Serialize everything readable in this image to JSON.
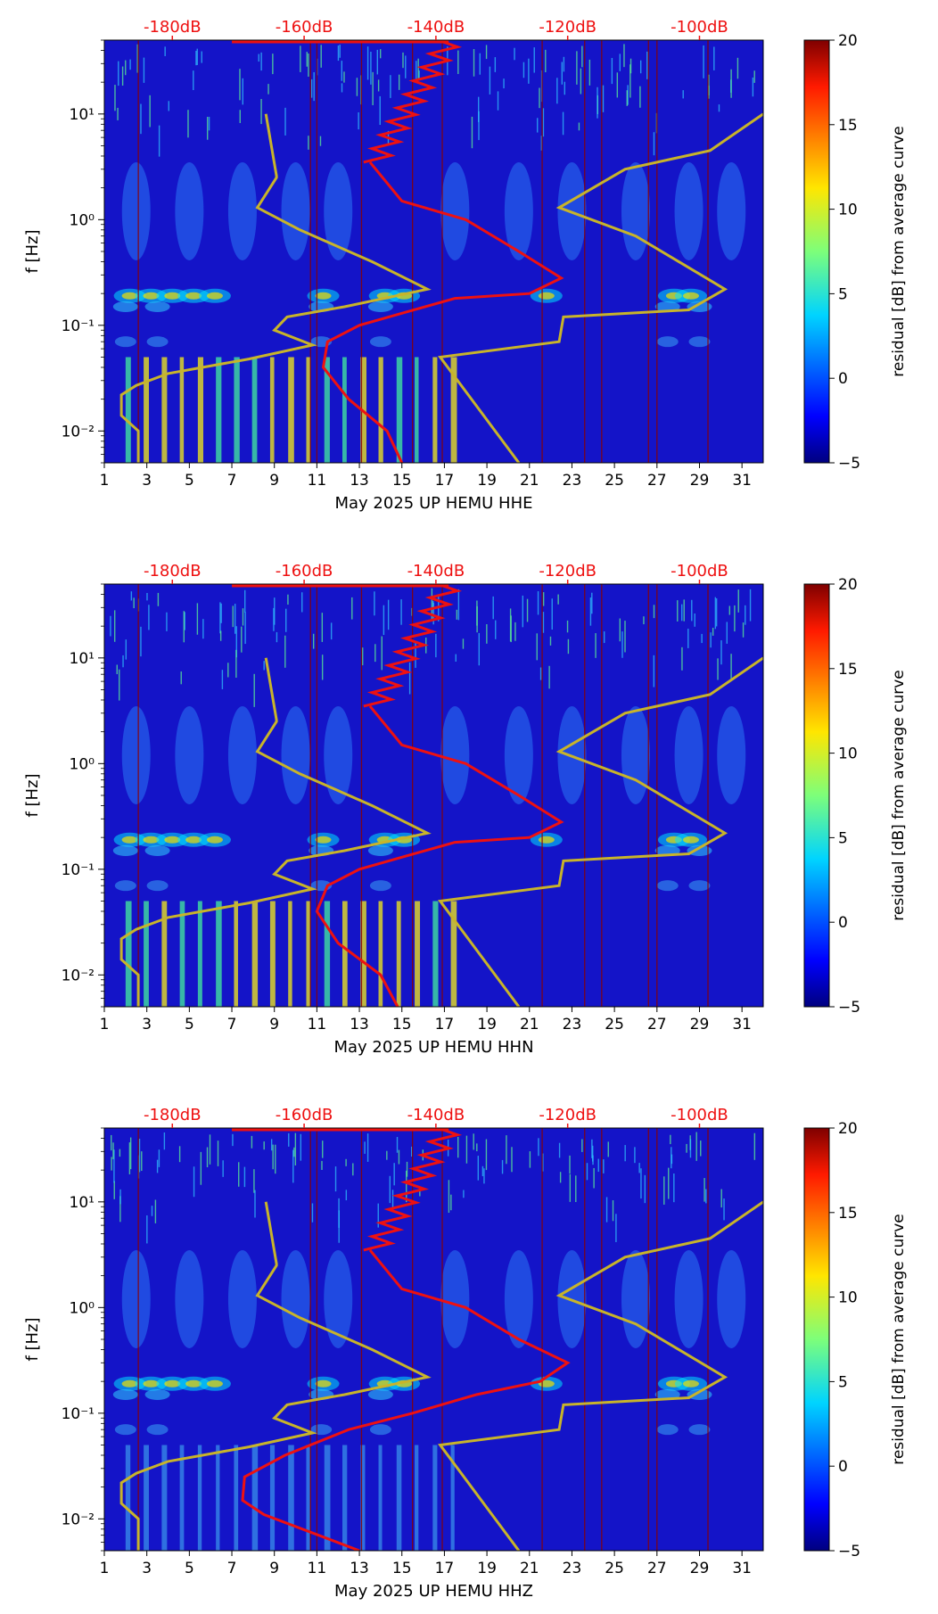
{
  "chart_data": [
    {
      "type": "heatmap",
      "title": "",
      "xlabel": "May 2025 UP HEMU  HHE",
      "ylabel": "f [Hz]",
      "x_ticks": [
        "1",
        "3",
        "5",
        "7",
        "9",
        "11",
        "13",
        "15",
        "17",
        "19",
        "21",
        "23",
        "25",
        "27",
        "29",
        "31"
      ],
      "xlim": [
        1,
        32
      ],
      "y_scale": "log",
      "ylim": [
        0.005,
        50
      ],
      "y_ticks": [
        "10⁻²",
        "10⁻¹",
        "10⁰",
        "10¹"
      ],
      "top_ticks": [
        "-180dB",
        "-160dB",
        "-140dB",
        "-120dB",
        "-100dB"
      ],
      "colorbar": {
        "label": "residual [dB] from average curve",
        "min": -5,
        "max": 20,
        "ticks": [
          "20",
          "15",
          "10",
          "5",
          "0",
          "−5"
        ]
      },
      "series": [
        {
          "name": "yellow noise model",
          "color": "#c8b42a",
          "points": [
            [
              8.6,
              10
            ],
            [
              9.1,
              2.6
            ],
            [
              9.1,
              2.5
            ],
            [
              8.2,
              1.3
            ],
            [
              10.2,
              0.8
            ],
            [
              13.6,
              0.4
            ],
            [
              16.2,
              0.22
            ],
            [
              12.3,
              0.15
            ],
            [
              9.6,
              0.12
            ],
            [
              9.0,
              0.09
            ],
            [
              10.8,
              0.065
            ],
            [
              7.8,
              0.048
            ],
            [
              4.0,
              0.035
            ],
            [
              2.5,
              0.027
            ],
            [
              1.8,
              0.022
            ],
            [
              1.8,
              0.014
            ],
            [
              2.6,
              0.01
            ],
            [
              2.6,
              0.005
            ]
          ]
        },
        {
          "name": "yellow noise model (upper)",
          "color": "#c8b42a",
          "points": [
            [
              32,
              10
            ],
            [
              29.5,
              4.5
            ],
            [
              25.5,
              3.0
            ],
            [
              22.4,
              1.3
            ],
            [
              26.0,
              0.7
            ],
            [
              30.2,
              0.22
            ],
            [
              28.5,
              0.14
            ],
            [
              22.6,
              0.12
            ],
            [
              22.4,
              0.07
            ],
            [
              16.8,
              0.05
            ],
            [
              20.5,
              0.005
            ]
          ]
        },
        {
          "name": "red average curve",
          "color": "#ee1111",
          "points": [
            [
              13.5,
              3.5
            ],
            [
              15.0,
              1.5
            ],
            [
              18.0,
              1.0
            ],
            [
              20.5,
              0.5
            ],
            [
              22.5,
              0.28
            ],
            [
              21.0,
              0.2
            ],
            [
              17.5,
              0.18
            ],
            [
              15.0,
              0.13
            ],
            [
              13.0,
              0.1
            ],
            [
              11.5,
              0.07
            ],
            [
              11.3,
              0.04
            ],
            [
              12.5,
              0.02
            ],
            [
              14.3,
              0.01
            ],
            [
              15.0,
              0.005
            ]
          ]
        }
      ]
    },
    {
      "type": "heatmap",
      "title": "",
      "xlabel": "May 2025 UP HEMU  HHN",
      "ylabel": "f [Hz]",
      "x_ticks": [
        "1",
        "3",
        "5",
        "7",
        "9",
        "11",
        "13",
        "15",
        "17",
        "19",
        "21",
        "23",
        "25",
        "27",
        "29",
        "31"
      ],
      "xlim": [
        1,
        32
      ],
      "y_scale": "log",
      "ylim": [
        0.005,
        50
      ],
      "y_ticks": [
        "10⁻²",
        "10⁻¹",
        "10⁰",
        "10¹"
      ],
      "top_ticks": [
        "-180dB",
        "-160dB",
        "-140dB",
        "-120dB",
        "-100dB"
      ],
      "colorbar": {
        "label": "residual [dB] from average curve",
        "min": -5,
        "max": 20,
        "ticks": [
          "20",
          "15",
          "10",
          "5",
          "0",
          "−5"
        ]
      },
      "series": [
        {
          "name": "yellow noise model",
          "color": "#c8b42a",
          "points": [
            [
              8.6,
              10
            ],
            [
              9.1,
              2.6
            ],
            [
              9.1,
              2.5
            ],
            [
              8.2,
              1.3
            ],
            [
              10.2,
              0.8
            ],
            [
              13.6,
              0.4
            ],
            [
              16.2,
              0.22
            ],
            [
              12.3,
              0.15
            ],
            [
              9.6,
              0.12
            ],
            [
              9.0,
              0.09
            ],
            [
              10.8,
              0.065
            ],
            [
              7.8,
              0.048
            ],
            [
              4.0,
              0.035
            ],
            [
              2.5,
              0.027
            ],
            [
              1.8,
              0.022
            ],
            [
              1.8,
              0.014
            ],
            [
              2.6,
              0.01
            ],
            [
              2.6,
              0.005
            ]
          ]
        },
        {
          "name": "yellow noise model (upper)",
          "color": "#c8b42a",
          "points": [
            [
              32,
              10
            ],
            [
              29.5,
              4.5
            ],
            [
              25.5,
              3.0
            ],
            [
              22.4,
              1.3
            ],
            [
              26.0,
              0.7
            ],
            [
              30.2,
              0.22
            ],
            [
              28.5,
              0.14
            ],
            [
              22.6,
              0.12
            ],
            [
              22.4,
              0.07
            ],
            [
              16.8,
              0.05
            ],
            [
              20.5,
              0.005
            ]
          ]
        },
        {
          "name": "red average curve",
          "color": "#ee1111",
          "points": [
            [
              13.5,
              3.5
            ],
            [
              15.0,
              1.5
            ],
            [
              18.0,
              1.0
            ],
            [
              20.5,
              0.5
            ],
            [
              22.5,
              0.28
            ],
            [
              21.0,
              0.2
            ],
            [
              17.5,
              0.18
            ],
            [
              15.0,
              0.13
            ],
            [
              13.0,
              0.1
            ],
            [
              11.5,
              0.07
            ],
            [
              11.0,
              0.04
            ],
            [
              12.0,
              0.02
            ],
            [
              14.0,
              0.01
            ],
            [
              14.8,
              0.005
            ]
          ]
        }
      ]
    },
    {
      "type": "heatmap",
      "title": "",
      "xlabel": "May 2025 UP HEMU  HHZ",
      "ylabel": "f [Hz]",
      "x_ticks": [
        "1",
        "3",
        "5",
        "7",
        "9",
        "11",
        "13",
        "15",
        "17",
        "19",
        "21",
        "23",
        "25",
        "27",
        "29",
        "31"
      ],
      "xlim": [
        1,
        32
      ],
      "y_scale": "log",
      "ylim": [
        0.005,
        50
      ],
      "y_ticks": [
        "10⁻²",
        "10⁻¹",
        "10⁰",
        "10¹"
      ],
      "top_ticks": [
        "-180dB",
        "-160dB",
        "-140dB",
        "-120dB",
        "-100dB"
      ],
      "colorbar": {
        "label": "residual [dB] from average curve",
        "min": -5,
        "max": 20,
        "ticks": [
          "20",
          "15",
          "10",
          "5",
          "0",
          "−5"
        ]
      },
      "series": [
        {
          "name": "yellow noise model",
          "color": "#c8b42a",
          "points": [
            [
              8.6,
              10
            ],
            [
              9.1,
              2.6
            ],
            [
              9.1,
              2.5
            ],
            [
              8.2,
              1.3
            ],
            [
              10.2,
              0.8
            ],
            [
              13.6,
              0.4
            ],
            [
              16.2,
              0.22
            ],
            [
              12.3,
              0.15
            ],
            [
              9.6,
              0.12
            ],
            [
              9.0,
              0.09
            ],
            [
              10.8,
              0.065
            ],
            [
              7.8,
              0.048
            ],
            [
              4.0,
              0.035
            ],
            [
              2.5,
              0.027
            ],
            [
              1.8,
              0.022
            ],
            [
              1.8,
              0.014
            ],
            [
              2.6,
              0.01
            ],
            [
              2.6,
              0.005
            ]
          ]
        },
        {
          "name": "yellow noise model (upper)",
          "color": "#c8b42a",
          "points": [
            [
              32,
              10
            ],
            [
              29.5,
              4.5
            ],
            [
              25.5,
              3.0
            ],
            [
              22.4,
              1.3
            ],
            [
              26.0,
              0.7
            ],
            [
              30.2,
              0.22
            ],
            [
              28.5,
              0.14
            ],
            [
              22.6,
              0.12
            ],
            [
              22.4,
              0.07
            ],
            [
              16.8,
              0.05
            ],
            [
              20.5,
              0.005
            ]
          ]
        },
        {
          "name": "red average curve",
          "color": "#ee1111",
          "points": [
            [
              13.5,
              3.5
            ],
            [
              15.0,
              1.5
            ],
            [
              18.0,
              1.0
            ],
            [
              20.5,
              0.5
            ],
            [
              22.8,
              0.3
            ],
            [
              21.5,
              0.2
            ],
            [
              18.5,
              0.15
            ],
            [
              15.5,
              0.1
            ],
            [
              12.5,
              0.07
            ],
            [
              9.5,
              0.04
            ],
            [
              7.6,
              0.025
            ],
            [
              7.5,
              0.015
            ],
            [
              8.5,
              0.011
            ],
            [
              13.0,
              0.005
            ]
          ]
        }
      ]
    }
  ]
}
